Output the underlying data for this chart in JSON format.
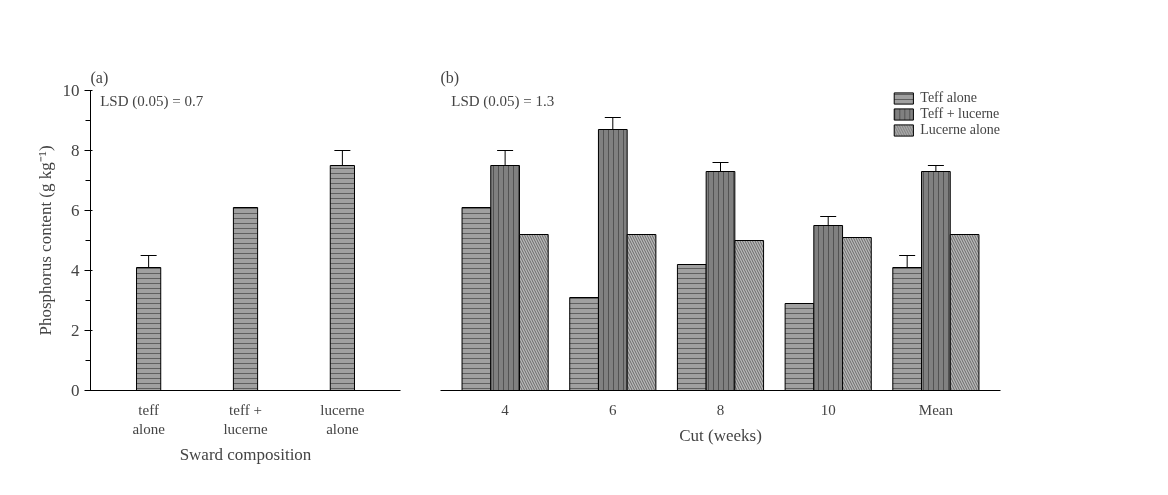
{
  "chart_data": [
    {
      "type": "bar",
      "title": "(a)",
      "xlabel": "Sward composition",
      "ylabel": "Phosphorus content (g kg⁻¹)",
      "categories": [
        "teff\nalone",
        "teff +\nlucerne",
        "lucerne\nalone"
      ],
      "series": [
        {
          "color": "#a0a0a0",
          "values": [
            4.1,
            6.1,
            7.5
          ],
          "errors": [
            0.4,
            null,
            0.5
          ]
        }
      ],
      "ylim": [
        0,
        10
      ],
      "yticks": [
        0,
        {
          "value": 1,
          "label": null
        },
        2,
        {
          "value": 3,
          "label": null
        },
        4,
        {
          "value": 5,
          "label": null
        },
        6,
        {
          "value": 7,
          "label": null
        },
        8,
        {
          "value": 9,
          "label": null
        },
        10
      ],
      "annotations": [
        "LSD (0.05) = 0.7"
      ],
      "grid": false
    },
    {
      "type": "bar",
      "title": "(b)",
      "xlabel": "Cut (weeks)",
      "categories": [
        "4",
        "6",
        "8",
        "10",
        "Mean"
      ],
      "series": [
        {
          "name": "Teff alone",
          "color": "#a0a0a0",
          "values": [
            6.1,
            3.1,
            4.2,
            2.9,
            4.1
          ],
          "errors": [
            null,
            null,
            null,
            null,
            0.4
          ]
        },
        {
          "name": "Teff + lucerne",
          "color": "#808080",
          "values": [
            7.5,
            8.7,
            7.3,
            5.5,
            7.3
          ],
          "errors": [
            0.5,
            0.4,
            0.3,
            0.3,
            0.2
          ]
        },
        {
          "name": "Lucerne alone",
          "color": "#b8b8b8",
          "values": [
            5.2,
            5.2,
            5.0,
            5.1,
            5.2
          ]
        }
      ],
      "ylim": [
        0,
        10
      ],
      "tick_labels": "x",
      "annotations": [
        "LSD (0.05) = 1.3"
      ],
      "grid": false,
      "legend": "top right"
    }
  ]
}
